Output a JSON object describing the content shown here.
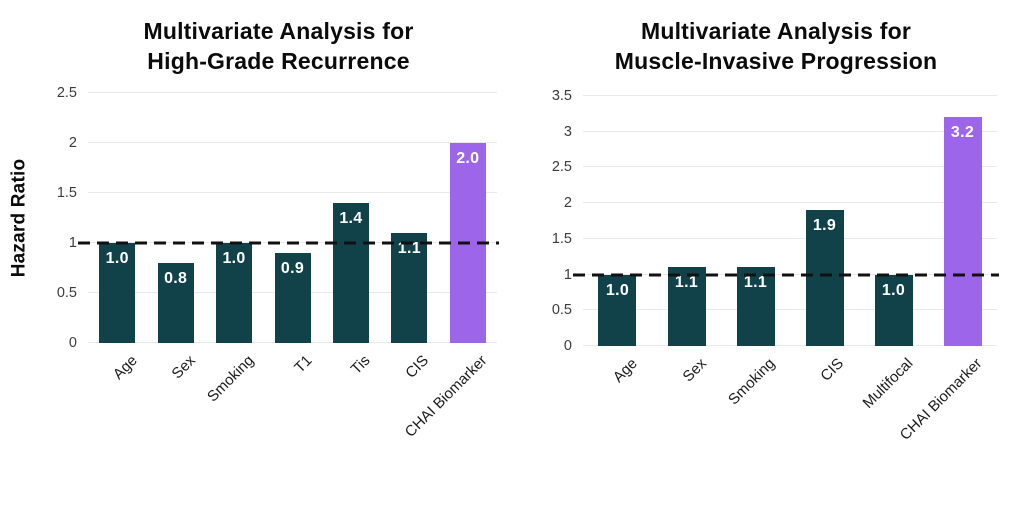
{
  "colors": {
    "bar_teal": "#11424a",
    "bar_purple": "#9d66ea",
    "grid": "#e9e9e9",
    "reference_line": "#111111",
    "ytick_text": "#3c3c3c",
    "xtick_text": "#1c1c1c",
    "title_text": "#0b0b0b",
    "value_text": "#ffffff",
    "background": "#ffffff"
  },
  "chart_data": [
    {
      "type": "bar",
      "title": "Multivariate Analysis for High-Grade Recurrence",
      "title_lines": [
        "Multivariate Analysis for",
        "High-Grade Recurrence"
      ],
      "ylabel": "Hazard Ratio",
      "xlabel": "",
      "categories": [
        "Age",
        "Sex",
        "Smoking",
        "T1",
        "Tis",
        "CIS",
        "CHAI Biomarker"
      ],
      "values": [
        1.0,
        0.8,
        1.0,
        0.9,
        1.4,
        1.1,
        2.0
      ],
      "value_labels": [
        "1.0",
        "0.8",
        "1.0",
        "0.9",
        "1.4",
        "1.1",
        "2.0"
      ],
      "bar_colors": [
        "teal",
        "teal",
        "teal",
        "teal",
        "teal",
        "teal",
        "purple"
      ],
      "yticks": [
        0,
        0.5,
        1,
        1.5,
        2,
        2.5
      ],
      "ytick_labels": [
        "0",
        "0.5",
        "1",
        "1.5",
        "2",
        "2.5"
      ],
      "ylim": [
        0,
        2.5
      ],
      "reference_line": 1.0,
      "grid": true,
      "legend": "none"
    },
    {
      "type": "bar",
      "title": "Multivariate Analysis for Muscle-Invasive Progression",
      "title_lines": [
        "Multivariate Analysis for",
        "Muscle-Invasive Progression"
      ],
      "ylabel": "",
      "xlabel": "",
      "categories": [
        "Age",
        "Sex",
        "Smoking",
        "CIS",
        "Multifocal",
        "CHAI Biomarker"
      ],
      "values": [
        1.0,
        1.1,
        1.1,
        1.9,
        1.0,
        3.2
      ],
      "value_labels": [
        "1.0",
        "1.1",
        "1.1",
        "1.9",
        "1.0",
        "3.2"
      ],
      "bar_colors": [
        "teal",
        "teal",
        "teal",
        "teal",
        "teal",
        "purple"
      ],
      "yticks": [
        0,
        0.5,
        1,
        1.5,
        2,
        2.5,
        3,
        3.5
      ],
      "ytick_labels": [
        "0",
        "0.5",
        "1",
        "1.5",
        "2",
        "2.5",
        "3",
        "3.5"
      ],
      "ylim": [
        0,
        3.5
      ],
      "reference_line": 1.0,
      "grid": true,
      "legend": "none"
    }
  ]
}
